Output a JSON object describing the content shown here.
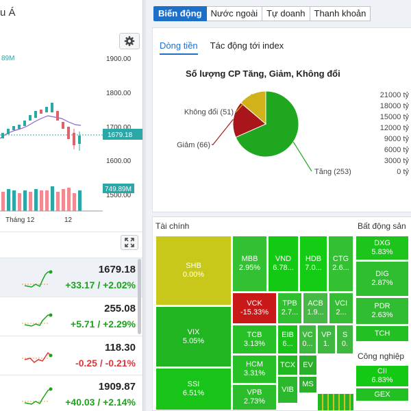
{
  "left": {
    "title": "u Á",
    "chart": {
      "y_ticks": [
        "1900.00",
        "1800.00",
        "1700.00",
        "1600.00",
        "1500.00"
      ],
      "price_tag": "1679.18",
      "volume_tag": "749.89M",
      "volume_label_cut": "89M",
      "x_ticks": [
        "Tháng 12",
        "12"
      ]
    },
    "indices": [
      {
        "price": "1679.18",
        "change": "+33.17 / +2.02%",
        "dir": "up"
      },
      {
        "price": "255.08",
        "change": "+5.71 / +2.29%",
        "dir": "up"
      },
      {
        "price": "118.30",
        "change": "-0.25 / -0.21%",
        "dir": "down"
      },
      {
        "price": "1909.87",
        "change": "+40.03 / +2.14%",
        "dir": "up"
      }
    ]
  },
  "tabs": [
    "Biến động",
    "Nước ngoài",
    "Tự doanh",
    "Thanh khoản"
  ],
  "subtabs": [
    "Dòng tiền",
    "Tác động tới index"
  ],
  "chart_data": {
    "type": "pie",
    "title": "Số lượng CP Tăng, Giảm, Không đổi",
    "slices": [
      {
        "label": "Tăng",
        "value": 253,
        "display": "Tăng (253)",
        "color": "#1fa81f"
      },
      {
        "label": "Giảm",
        "value": 66,
        "display": "Giảm (66)",
        "color": "#a8161a"
      },
      {
        "label": "Không đổi",
        "value": 51,
        "display": "Không đổi (51)",
        "color": "#d2b21a"
      }
    ],
    "money_axis": [
      "21000 tỷ",
      "18000 tỷ",
      "15000 tỷ",
      "12000 tỷ",
      "9000 tỷ",
      "6000 tỷ",
      "3000 tỷ",
      "0 tỷ"
    ]
  },
  "treemap": {
    "groups": [
      "Tài chính",
      "Bất động sản",
      "Công nghiệp"
    ],
    "cells": [
      {
        "sym": "SHB",
        "pct": "0.00%",
        "color": "#c8c81a"
      },
      {
        "sym": "VIX",
        "pct": "5.05%",
        "color": "#22b522"
      },
      {
        "sym": "SSI",
        "pct": "6.51%",
        "color": "#19c419"
      },
      {
        "sym": "MBB",
        "pct": "2.95%",
        "color": "#33c033"
      },
      {
        "sym": "VND",
        "pct": "6.78...",
        "color": "#14c914"
      },
      {
        "sym": "HDB",
        "pct": "7.0...",
        "color": "#14cc14"
      },
      {
        "sym": "CTG",
        "pct": "2.6...",
        "color": "#33c033"
      },
      {
        "sym": "VCK",
        "pct": "-15.33%",
        "color": "#c81818"
      },
      {
        "sym": "TPB",
        "pct": "2.7...",
        "color": "#2fbf2f"
      },
      {
        "sym": "ACB",
        "pct": "1.9...",
        "color": "#45b845"
      },
      {
        "sym": "VCI",
        "pct": "2...",
        "color": "#35bd35"
      },
      {
        "sym": "TCB",
        "pct": "3.13%",
        "color": "#27c027"
      },
      {
        "sym": "EIB",
        "pct": "6...",
        "color": "#18c418"
      },
      {
        "sym": "VC",
        "pct": "0...",
        "color": "#3eb83e"
      },
      {
        "sym": "VP",
        "pct": "1.",
        "color": "#3eb83e"
      },
      {
        "sym": "S",
        "pct": "0.",
        "color": "#3eb83e"
      },
      {
        "sym": "HCM",
        "pct": "3.31%",
        "color": "#27c027"
      },
      {
        "sym": "TCX",
        "pct": "",
        "color": "#22b822"
      },
      {
        "sym": "EV",
        "pct": "",
        "color": "#2cb02c"
      },
      {
        "sym": "MS",
        "pct": "",
        "color": "#2cb02c"
      },
      {
        "sym": "VPB",
        "pct": "2.73%",
        "color": "#2bbd2b"
      },
      {
        "sym": "VIB",
        "pct": "",
        "color": "#2cb82c"
      },
      {
        "sym": "DXG",
        "pct": "5.83%",
        "color": "#1cc41c"
      },
      {
        "sym": "DIG",
        "pct": "2.87%",
        "color": "#2fbe2f"
      },
      {
        "sym": "PDR",
        "pct": "2.63%",
        "color": "#31bd31"
      },
      {
        "sym": "TCH",
        "pct": "",
        "color": "#22c022"
      },
      {
        "sym": "CII",
        "pct": "6.83%",
        "color": "#14c914"
      },
      {
        "sym": "GEX",
        "pct": "",
        "color": "#22c022"
      }
    ]
  }
}
